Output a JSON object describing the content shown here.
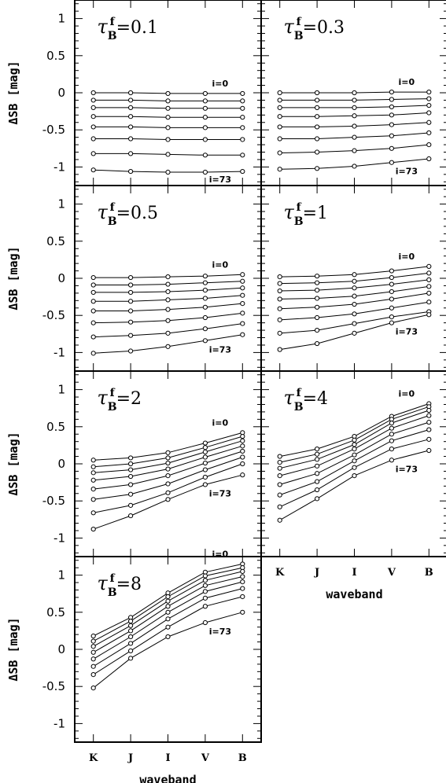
{
  "figure": {
    "ylabel": "ΔSB [mag]",
    "xlabel": "waveband",
    "categories": [
      "K",
      "J",
      "I",
      "V",
      "B"
    ],
    "ylim": [
      -1.25,
      1.25
    ],
    "yticks": [
      1,
      0.5,
      0,
      -0.5,
      -1
    ],
    "ytick_labels": [
      "1",
      "0.5",
      "0",
      "-0.5",
      "-1"
    ]
  },
  "chart_data": [
    {
      "type": "line",
      "title": "τ_B^f=0.1",
      "title_tau": "τ",
      "title_sub": "B",
      "title_sup": "f",
      "title_eq": "=0.1",
      "categories": [
        "K",
        "J",
        "I",
        "V",
        "B"
      ],
      "annotation_top": "i=0",
      "annotation_bottom": "i=73",
      "ylim": [
        -1.25,
        1.25
      ],
      "series": [
        {
          "values": [
            0.0,
            0.0,
            -0.01,
            -0.01,
            -0.01
          ]
        },
        {
          "values": [
            -0.1,
            -0.1,
            -0.11,
            -0.11,
            -0.11
          ]
        },
        {
          "values": [
            -0.2,
            -0.2,
            -0.21,
            -0.21,
            -0.21
          ]
        },
        {
          "values": [
            -0.32,
            -0.32,
            -0.33,
            -0.33,
            -0.33
          ]
        },
        {
          "values": [
            -0.46,
            -0.46,
            -0.47,
            -0.47,
            -0.47
          ]
        },
        {
          "values": [
            -0.62,
            -0.62,
            -0.63,
            -0.63,
            -0.63
          ]
        },
        {
          "values": [
            -0.82,
            -0.82,
            -0.83,
            -0.84,
            -0.84
          ]
        },
        {
          "values": [
            -1.04,
            -1.06,
            -1.07,
            -1.07,
            -1.06
          ]
        }
      ]
    },
    {
      "type": "line",
      "title": "τ_B^f=0.3",
      "title_tau": "τ",
      "title_sub": "B",
      "title_sup": "f",
      "title_eq": "=0.3",
      "categories": [
        "K",
        "J",
        "I",
        "V",
        "B"
      ],
      "annotation_top": "i=0",
      "annotation_bottom": "i=73",
      "ylim": [
        -1.25,
        1.25
      ],
      "series": [
        {
          "values": [
            0.0,
            0.0,
            0.0,
            0.01,
            0.01
          ]
        },
        {
          "values": [
            -0.1,
            -0.1,
            -0.1,
            -0.09,
            -0.08
          ]
        },
        {
          "values": [
            -0.2,
            -0.2,
            -0.2,
            -0.19,
            -0.17
          ]
        },
        {
          "values": [
            -0.32,
            -0.32,
            -0.31,
            -0.3,
            -0.27
          ]
        },
        {
          "values": [
            -0.46,
            -0.46,
            -0.45,
            -0.43,
            -0.4
          ]
        },
        {
          "values": [
            -0.62,
            -0.62,
            -0.6,
            -0.58,
            -0.54
          ]
        },
        {
          "values": [
            -0.81,
            -0.8,
            -0.78,
            -0.75,
            -0.7
          ]
        },
        {
          "values": [
            -1.03,
            -1.02,
            -0.99,
            -0.94,
            -0.89
          ]
        }
      ]
    },
    {
      "type": "line",
      "title": "τ_B^f=0.5",
      "title_tau": "τ",
      "title_sub": "B",
      "title_sup": "f",
      "title_eq": "=0.5",
      "categories": [
        "K",
        "J",
        "I",
        "V",
        "B"
      ],
      "annotation_top": "i=0",
      "annotation_bottom": "i=73",
      "ylim": [
        -1.25,
        1.25
      ],
      "series": [
        {
          "values": [
            0.01,
            0.01,
            0.02,
            0.03,
            0.05
          ]
        },
        {
          "values": [
            -0.09,
            -0.09,
            -0.08,
            -0.06,
            -0.04
          ]
        },
        {
          "values": [
            -0.19,
            -0.19,
            -0.18,
            -0.16,
            -0.13
          ]
        },
        {
          "values": [
            -0.31,
            -0.31,
            -0.29,
            -0.27,
            -0.23
          ]
        },
        {
          "values": [
            -0.44,
            -0.44,
            -0.42,
            -0.39,
            -0.34
          ]
        },
        {
          "values": [
            -0.6,
            -0.59,
            -0.57,
            -0.53,
            -0.47
          ]
        },
        {
          "values": [
            -0.79,
            -0.77,
            -0.74,
            -0.68,
            -0.61
          ]
        },
        {
          "values": [
            -1.01,
            -0.98,
            -0.92,
            -0.84,
            -0.76
          ]
        }
      ]
    },
    {
      "type": "line",
      "title": "τ_B^f=1",
      "title_tau": "τ",
      "title_sub": "B",
      "title_sup": "f",
      "title_eq": "=1",
      "categories": [
        "K",
        "J",
        "I",
        "V",
        "B"
      ],
      "annotation_top": "i=0",
      "annotation_bottom": "i=73",
      "ylim": [
        -1.25,
        1.25
      ],
      "series": [
        {
          "values": [
            0.02,
            0.03,
            0.05,
            0.1,
            0.16
          ]
        },
        {
          "values": [
            -0.07,
            -0.06,
            -0.04,
            0.01,
            0.07
          ]
        },
        {
          "values": [
            -0.17,
            -0.16,
            -0.13,
            -0.08,
            -0.02
          ]
        },
        {
          "values": [
            -0.28,
            -0.27,
            -0.24,
            -0.18,
            -0.11
          ]
        },
        {
          "values": [
            -0.41,
            -0.39,
            -0.35,
            -0.28,
            -0.2
          ]
        },
        {
          "values": [
            -0.56,
            -0.53,
            -0.48,
            -0.4,
            -0.32
          ]
        },
        {
          "values": [
            -0.74,
            -0.7,
            -0.61,
            -0.52,
            -0.45
          ]
        },
        {
          "values": [
            -0.96,
            -0.88,
            -0.74,
            -0.6,
            -0.49
          ]
        }
      ]
    },
    {
      "type": "line",
      "title": "τ_B^f=2",
      "title_tau": "τ",
      "title_sub": "B",
      "title_sup": "f",
      "title_eq": "=2",
      "categories": [
        "K",
        "J",
        "I",
        "V",
        "B"
      ],
      "annotation_top": "i=0",
      "annotation_bottom": "i=73",
      "ylim": [
        -1.25,
        1.25
      ],
      "series": [
        {
          "values": [
            0.05,
            0.08,
            0.15,
            0.28,
            0.42
          ]
        },
        {
          "values": [
            -0.04,
            0.0,
            0.08,
            0.22,
            0.37
          ]
        },
        {
          "values": [
            -0.12,
            -0.08,
            0.01,
            0.16,
            0.31
          ]
        },
        {
          "values": [
            -0.22,
            -0.17,
            -0.07,
            0.09,
            0.24
          ]
        },
        {
          "values": [
            -0.34,
            -0.28,
            -0.16,
            0.01,
            0.17
          ]
        },
        {
          "values": [
            -0.48,
            -0.41,
            -0.27,
            -0.08,
            0.09
          ]
        },
        {
          "values": [
            -0.66,
            -0.56,
            -0.39,
            -0.18,
            0.0
          ]
        },
        {
          "values": [
            -0.88,
            -0.7,
            -0.48,
            -0.28,
            -0.15
          ]
        }
      ]
    },
    {
      "type": "line",
      "title": "τ_B^f=4",
      "title_tau": "τ",
      "title_sub": "B",
      "title_sup": "f",
      "title_eq": "=4",
      "categories": [
        "K",
        "J",
        "I",
        "V",
        "B"
      ],
      "annotation_top": "i=0",
      "annotation_bottom": "i=73",
      "ylim": [
        -1.25,
        1.25
      ],
      "series": [
        {
          "values": [
            0.1,
            0.2,
            0.37,
            0.64,
            0.81
          ]
        },
        {
          "values": [
            0.02,
            0.13,
            0.32,
            0.6,
            0.77
          ]
        },
        {
          "values": [
            -0.06,
            0.06,
            0.26,
            0.55,
            0.72
          ]
        },
        {
          "values": [
            -0.16,
            -0.03,
            0.2,
            0.48,
            0.65
          ]
        },
        {
          "values": [
            -0.28,
            -0.13,
            0.12,
            0.4,
            0.56
          ]
        },
        {
          "values": [
            -0.42,
            -0.24,
            0.04,
            0.31,
            0.46
          ]
        },
        {
          "values": [
            -0.58,
            -0.35,
            -0.05,
            0.2,
            0.33
          ]
        },
        {
          "values": [
            -0.76,
            -0.47,
            -0.16,
            0.05,
            0.18
          ]
        }
      ]
    },
    {
      "type": "line",
      "title": "τ_B^f=8",
      "title_tau": "τ",
      "title_sub": "B",
      "title_sup": "f",
      "title_eq": "=8",
      "categories": [
        "K",
        "J",
        "I",
        "V",
        "B"
      ],
      "annotation_top": "i=0",
      "annotation_bottom": "i=73",
      "ylim": [
        -1.25,
        1.25
      ],
      "series": [
        {
          "values": [
            0.18,
            0.43,
            0.76,
            1.04,
            1.15
          ]
        },
        {
          "values": [
            0.11,
            0.38,
            0.71,
            0.99,
            1.1
          ]
        },
        {
          "values": [
            0.04,
            0.32,
            0.65,
            0.93,
            1.05
          ]
        },
        {
          "values": [
            -0.04,
            0.25,
            0.58,
            0.86,
            0.98
          ]
        },
        {
          "values": [
            -0.13,
            0.17,
            0.5,
            0.78,
            0.91
          ]
        },
        {
          "values": [
            -0.23,
            0.08,
            0.41,
            0.69,
            0.82
          ]
        },
        {
          "values": [
            -0.34,
            -0.02,
            0.3,
            0.58,
            0.71
          ]
        },
        {
          "values": [
            -0.52,
            -0.12,
            0.17,
            0.36,
            0.5
          ]
        }
      ]
    }
  ]
}
